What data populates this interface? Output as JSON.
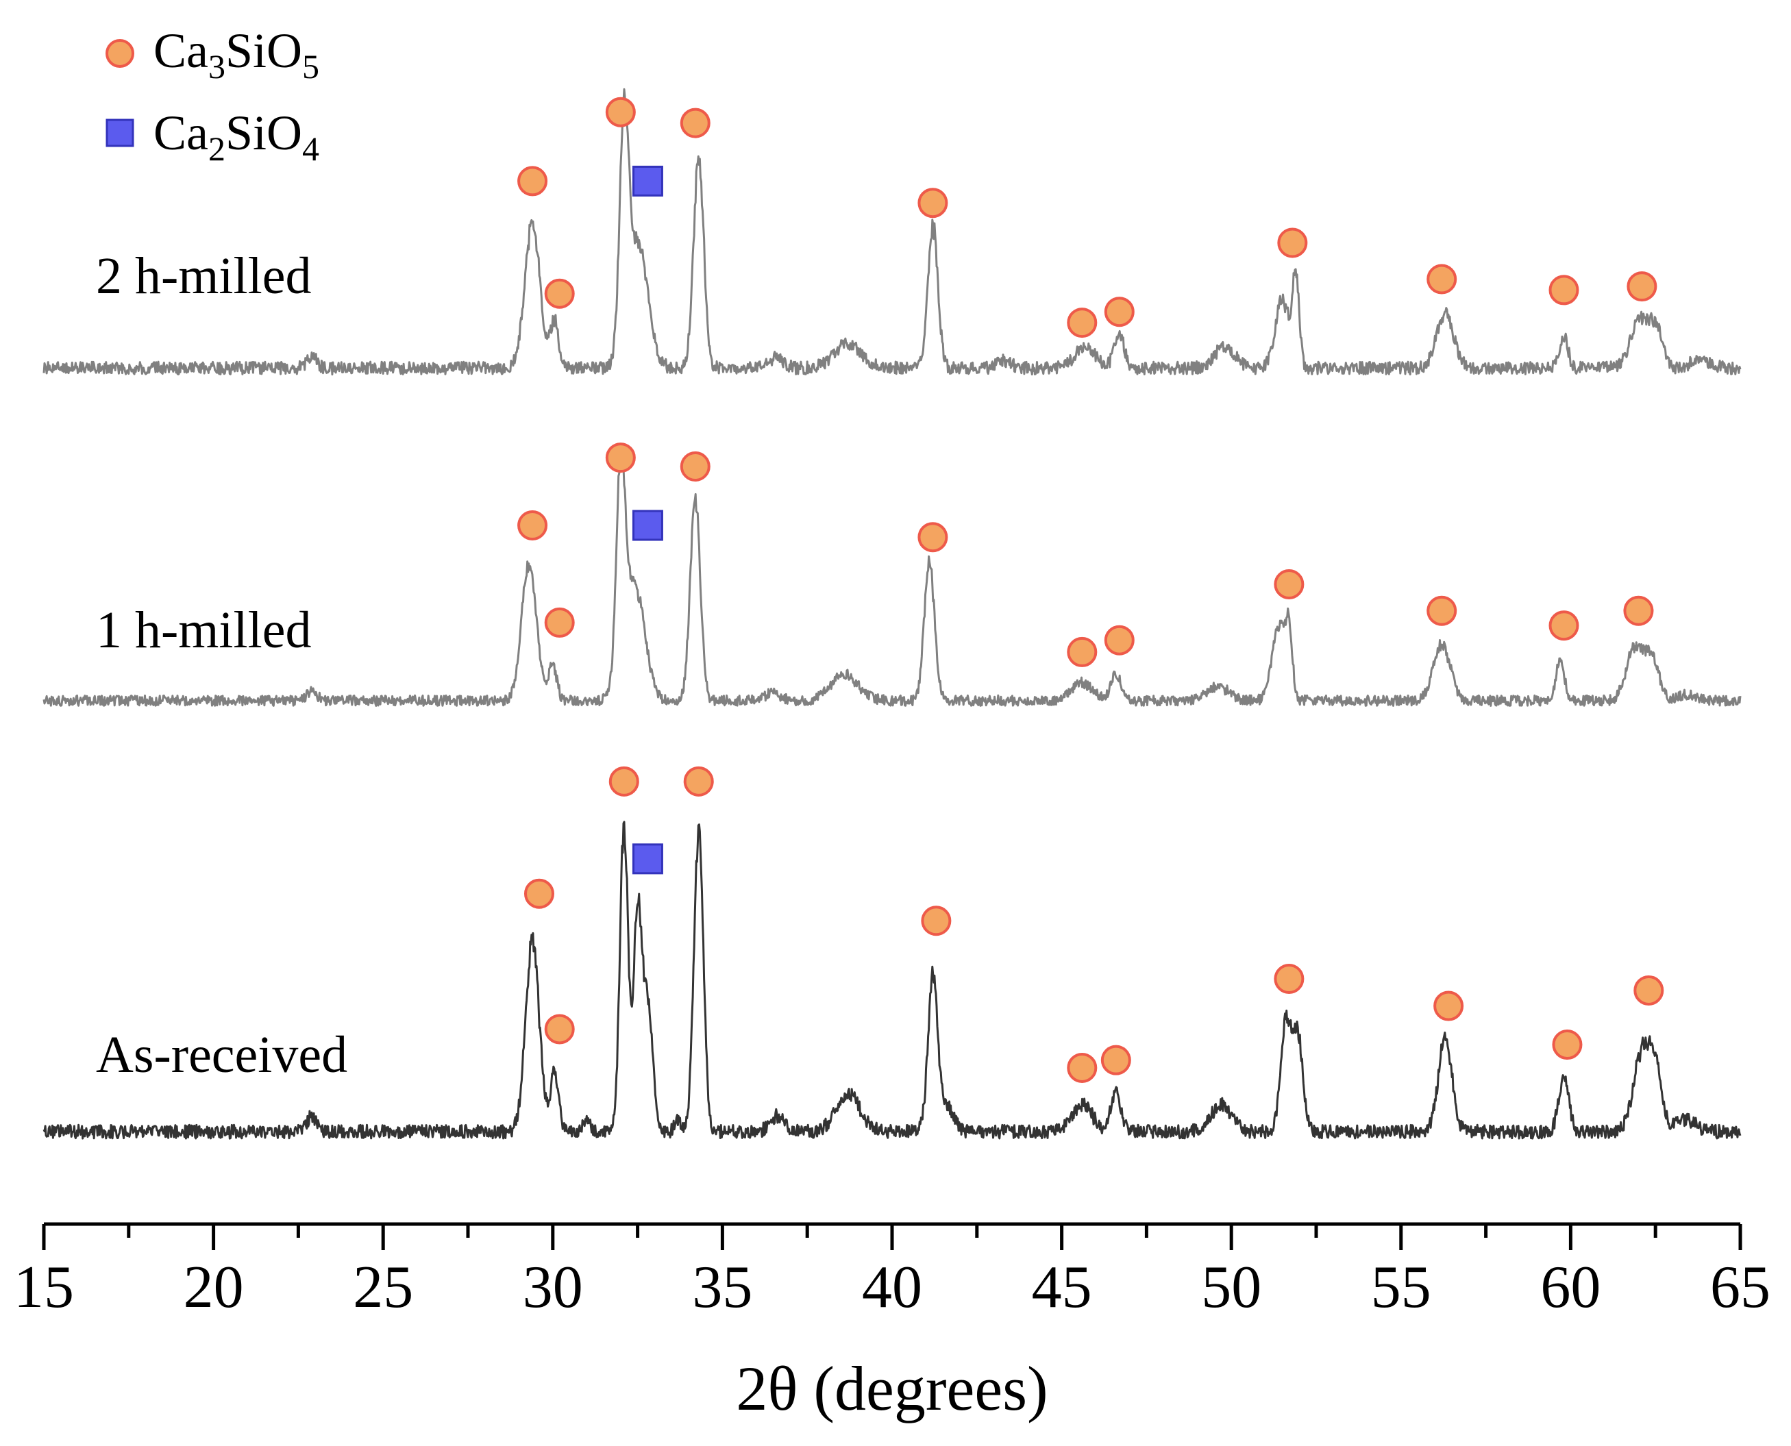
{
  "chart_data": {
    "type": "line",
    "title": "",
    "xlabel": "2θ (degrees)",
    "ylabel": "",
    "xlim": [
      15,
      65
    ],
    "x_ticks": [
      "15",
      "20",
      "25",
      "30",
      "35",
      "40",
      "45",
      "50",
      "55",
      "60",
      "65"
    ],
    "grid": false,
    "legend_position": "top-left",
    "legend": [
      {
        "key": "c3s",
        "main": "Ca",
        "sub1": "3",
        "mid": "SiO",
        "sub2": "5",
        "marker": "circle",
        "color": "#f4a460",
        "edge": "#ee5a4a"
      },
      {
        "key": "c2s",
        "main": "Ca",
        "sub1": "2",
        "mid": "SiO",
        "sub2": "4",
        "marker": "square",
        "color": "#5b5bee",
        "edge": "#3333bb"
      }
    ],
    "series": [
      {
        "name": "2 h-milled",
        "color": "#808080",
        "baseline": 540,
        "scale": 530,
        "peaks": [
          [
            22.9,
            0.03,
            0.15
          ],
          [
            29.4,
            0.4,
            0.22
          ],
          [
            30.05,
            0.13,
            0.12
          ],
          [
            32.1,
            0.6,
            0.13
          ],
          [
            32.5,
            0.35,
            0.3
          ],
          [
            34.3,
            0.58,
            0.15
          ],
          [
            36.6,
            0.03,
            0.2
          ],
          [
            38.7,
            0.07,
            0.4
          ],
          [
            41.2,
            0.39,
            0.15
          ],
          [
            43.3,
            0.02,
            0.2
          ],
          [
            45.7,
            0.06,
            0.3
          ],
          [
            46.7,
            0.09,
            0.15
          ],
          [
            49.8,
            0.06,
            0.3
          ],
          [
            51.5,
            0.19,
            0.2
          ],
          [
            51.9,
            0.25,
            0.1
          ],
          [
            56.3,
            0.15,
            0.25
          ],
          [
            59.8,
            0.09,
            0.12
          ],
          [
            62.0,
            0.13,
            0.25
          ],
          [
            62.5,
            0.11,
            0.2
          ],
          [
            63.8,
            0.02,
            0.3
          ]
        ],
        "markers": [
          {
            "x": 29.4,
            "kind": "circle",
            "y": 0.52
          },
          {
            "x": 30.2,
            "kind": "circle",
            "y": 0.21
          },
          {
            "x": 32.0,
            "kind": "circle",
            "y": 0.71
          },
          {
            "x": 32.8,
            "kind": "square",
            "y": 0.52
          },
          {
            "x": 34.2,
            "kind": "circle",
            "y": 0.68
          },
          {
            "x": 41.2,
            "kind": "circle",
            "y": 0.46
          },
          {
            "x": 45.6,
            "kind": "circle",
            "y": 0.13
          },
          {
            "x": 46.7,
            "kind": "circle",
            "y": 0.16
          },
          {
            "x": 51.8,
            "kind": "circle",
            "y": 0.35
          },
          {
            "x": 56.2,
            "kind": "circle",
            "y": 0.25
          },
          {
            "x": 59.8,
            "kind": "circle",
            "y": 0.22
          },
          {
            "x": 62.1,
            "kind": "circle",
            "y": 0.23
          }
        ]
      },
      {
        "name": "1 h-milled",
        "color": "#808080",
        "baseline": 1025,
        "scale": 430,
        "peaks": [
          [
            22.9,
            0.03,
            0.15
          ],
          [
            29.3,
            0.46,
            0.22
          ],
          [
            30.0,
            0.12,
            0.12
          ],
          [
            32.0,
            0.68,
            0.13
          ],
          [
            32.4,
            0.4,
            0.3
          ],
          [
            34.2,
            0.68,
            0.15
          ],
          [
            36.5,
            0.03,
            0.2
          ],
          [
            38.6,
            0.09,
            0.4
          ],
          [
            41.1,
            0.47,
            0.15
          ],
          [
            45.6,
            0.06,
            0.3
          ],
          [
            46.6,
            0.09,
            0.15
          ],
          [
            49.6,
            0.05,
            0.3
          ],
          [
            51.4,
            0.25,
            0.2
          ],
          [
            51.7,
            0.2,
            0.1
          ],
          [
            56.2,
            0.19,
            0.25
          ],
          [
            59.7,
            0.14,
            0.12
          ],
          [
            61.9,
            0.18,
            0.25
          ],
          [
            62.4,
            0.14,
            0.2
          ],
          [
            63.4,
            0.02,
            0.3
          ]
        ],
        "markers": [
          {
            "x": 29.4,
            "kind": "circle",
            "y": 0.6
          },
          {
            "x": 30.2,
            "kind": "circle",
            "y": 0.27
          },
          {
            "x": 32.0,
            "kind": "circle",
            "y": 0.83
          },
          {
            "x": 32.8,
            "kind": "square",
            "y": 0.6
          },
          {
            "x": 34.2,
            "kind": "circle",
            "y": 0.8
          },
          {
            "x": 41.2,
            "kind": "circle",
            "y": 0.56
          },
          {
            "x": 45.6,
            "kind": "circle",
            "y": 0.17
          },
          {
            "x": 46.7,
            "kind": "circle",
            "y": 0.21
          },
          {
            "x": 51.7,
            "kind": "circle",
            "y": 0.4
          },
          {
            "x": 56.2,
            "kind": "circle",
            "y": 0.31
          },
          {
            "x": 59.8,
            "kind": "circle",
            "y": 0.26
          },
          {
            "x": 62.0,
            "kind": "circle",
            "y": 0.31
          }
        ]
      },
      {
        "name": "As-received",
        "color": "#333333",
        "baseline": 1655,
        "scale": 565,
        "peaks": [
          [
            22.9,
            0.04,
            0.15
          ],
          [
            29.4,
            0.5,
            0.2
          ],
          [
            30.05,
            0.15,
            0.12
          ],
          [
            31.0,
            0.03,
            0.1
          ],
          [
            32.1,
            0.8,
            0.12
          ],
          [
            32.5,
            0.55,
            0.12
          ],
          [
            32.8,
            0.33,
            0.15
          ],
          [
            33.7,
            0.03,
            0.1
          ],
          [
            34.3,
            0.78,
            0.14
          ],
          [
            36.6,
            0.04,
            0.2
          ],
          [
            38.7,
            0.1,
            0.35
          ],
          [
            41.2,
            0.4,
            0.14
          ],
          [
            41.6,
            0.07,
            0.2
          ],
          [
            45.6,
            0.07,
            0.3
          ],
          [
            46.6,
            0.1,
            0.15
          ],
          [
            49.7,
            0.07,
            0.3
          ],
          [
            51.6,
            0.28,
            0.15
          ],
          [
            51.95,
            0.25,
            0.15
          ],
          [
            56.3,
            0.24,
            0.2
          ],
          [
            59.8,
            0.14,
            0.15
          ],
          [
            62.1,
            0.2,
            0.25
          ],
          [
            62.5,
            0.14,
            0.2
          ],
          [
            63.4,
            0.03,
            0.3
          ]
        ],
        "markers": [
          {
            "x": 29.6,
            "kind": "circle",
            "y": 0.62
          },
          {
            "x": 30.2,
            "kind": "circle",
            "y": 0.27
          },
          {
            "x": 32.1,
            "kind": "circle",
            "y": 0.91
          },
          {
            "x": 32.8,
            "kind": "square",
            "y": 0.71
          },
          {
            "x": 34.3,
            "kind": "circle",
            "y": 0.91
          },
          {
            "x": 41.3,
            "kind": "circle",
            "y": 0.55
          },
          {
            "x": 45.6,
            "kind": "circle",
            "y": 0.17
          },
          {
            "x": 46.6,
            "kind": "circle",
            "y": 0.19
          },
          {
            "x": 51.7,
            "kind": "circle",
            "y": 0.4
          },
          {
            "x": 56.4,
            "kind": "circle",
            "y": 0.33
          },
          {
            "x": 59.9,
            "kind": "circle",
            "y": 0.23
          },
          {
            "x": 62.3,
            "kind": "circle",
            "y": 0.37
          }
        ]
      }
    ]
  }
}
